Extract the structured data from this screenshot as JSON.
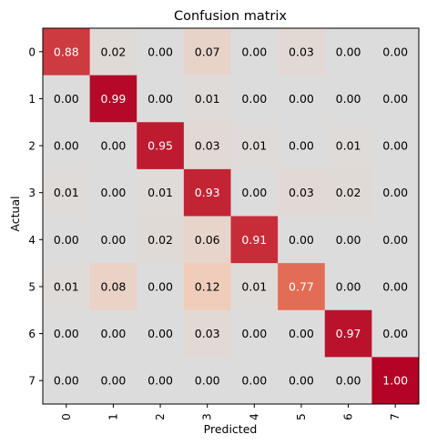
{
  "chart_data": {
    "type": "heatmap",
    "title": "Confusion matrix",
    "xlabel": "Predicted",
    "ylabel": "Actual",
    "x_categories": [
      "0",
      "1",
      "2",
      "3",
      "4",
      "5",
      "6",
      "7"
    ],
    "y_categories": [
      "0",
      "1",
      "2",
      "3",
      "4",
      "5",
      "6",
      "7"
    ],
    "values": [
      [
        0.88,
        0.02,
        0.0,
        0.07,
        0.0,
        0.03,
        0.0,
        0.0
      ],
      [
        0.0,
        0.99,
        0.0,
        0.01,
        0.0,
        0.0,
        0.0,
        0.0
      ],
      [
        0.0,
        0.0,
        0.95,
        0.03,
        0.01,
        0.0,
        0.01,
        0.0
      ],
      [
        0.01,
        0.0,
        0.01,
        0.93,
        0.0,
        0.03,
        0.02,
        0.0
      ],
      [
        0.0,
        0.0,
        0.02,
        0.06,
        0.91,
        0.0,
        0.0,
        0.0
      ],
      [
        0.01,
        0.08,
        0.0,
        0.12,
        0.01,
        0.77,
        0.0,
        0.0
      ],
      [
        0.0,
        0.0,
        0.0,
        0.03,
        0.0,
        0.0,
        0.97,
        0.0
      ],
      [
        0.0,
        0.0,
        0.0,
        0.0,
        0.0,
        0.0,
        0.0,
        1.0
      ]
    ],
    "value_format": "2 decimals",
    "colormap": "coolwarm (gray low, red high)",
    "color_low": "#dddcdc",
    "color_high": "#b40426",
    "vrange": [
      0,
      1
    ],
    "grid": false,
    "legend": "none"
  }
}
